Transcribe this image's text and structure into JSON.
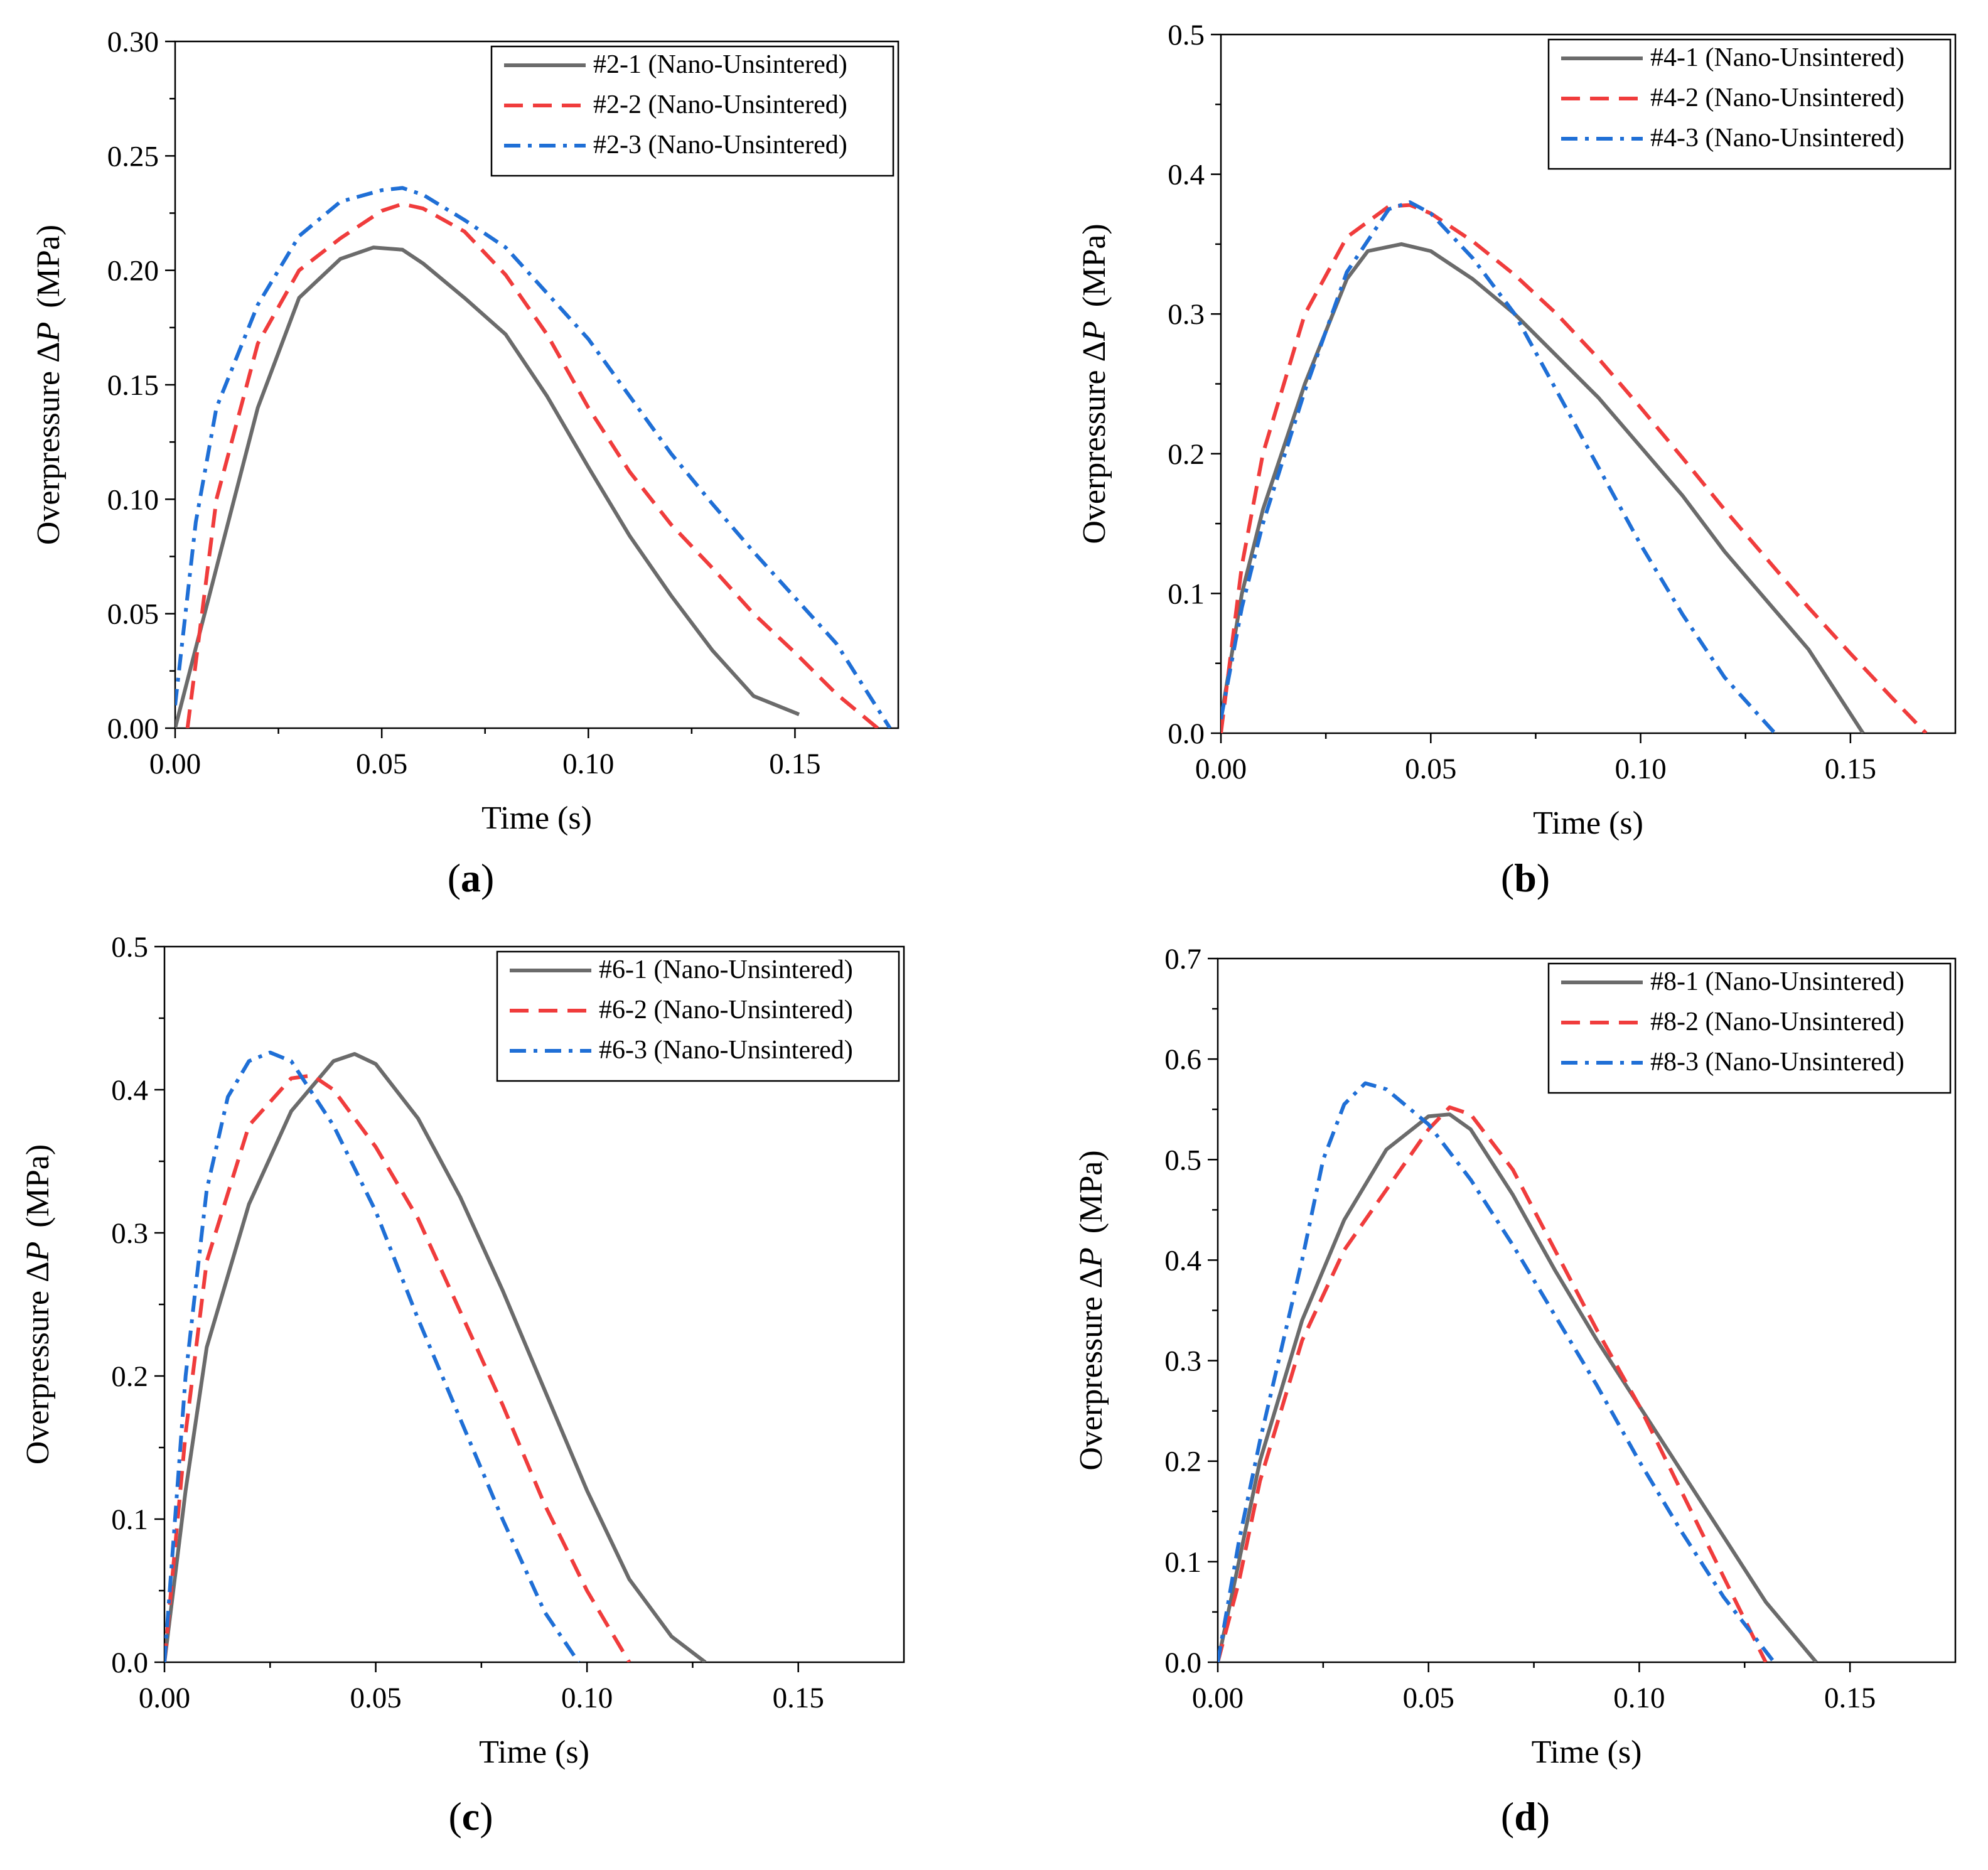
{
  "colors": {
    "series1": "#6b6b6b",
    "series2": "#f03c3c",
    "series3": "#1f6fd6"
  },
  "chart_data": [
    {
      "panel": "a",
      "type": "line",
      "xlabel": "Time (s)",
      "ylabel_prefix": "Overpressure Δ",
      "ylabel_var": "P",
      "ylabel_suffix": "(MPa)",
      "xlim": [
        0,
        0.175
      ],
      "ylim": [
        0,
        0.3
      ],
      "xticks": [
        0,
        0.05,
        0.1,
        0.15
      ],
      "xtick_labels": [
        "0.00",
        "0.05",
        "0.10",
        "0.15"
      ],
      "yticks": [
        0,
        0.05,
        0.1,
        0.15,
        0.2,
        0.25,
        0.3
      ],
      "ytick_labels": [
        "0.00",
        "0.05",
        "0.10",
        "0.15",
        "0.20",
        "0.25",
        "0.30"
      ],
      "legend_position": "top-right",
      "series": [
        {
          "name": "#2-1 (Nano-Unsintered)",
          "style": "solid",
          "color_key": "series1",
          "x": [
            0,
            0.01,
            0.02,
            0.03,
            0.04,
            0.048,
            0.055,
            0.06,
            0.07,
            0.08,
            0.09,
            0.1,
            0.11,
            0.12,
            0.13,
            0.14,
            0.151
          ],
          "y": [
            0,
            0.07,
            0.14,
            0.188,
            0.205,
            0.21,
            0.209,
            0.203,
            0.188,
            0.172,
            0.145,
            0.114,
            0.084,
            0.058,
            0.034,
            0.014,
            0.006
          ]
        },
        {
          "name": "#2-2 (Nano-Unsintered)",
          "style": "dashed",
          "color_key": "series2",
          "x": [
            0.003,
            0.01,
            0.02,
            0.03,
            0.04,
            0.05,
            0.055,
            0.06,
            0.07,
            0.08,
            0.09,
            0.1,
            0.11,
            0.12,
            0.13,
            0.14,
            0.15,
            0.16,
            0.17
          ],
          "y": [
            0,
            0.1,
            0.168,
            0.2,
            0.214,
            0.226,
            0.229,
            0.227,
            0.217,
            0.198,
            0.172,
            0.14,
            0.112,
            0.089,
            0.07,
            0.05,
            0.033,
            0.015,
            0
          ]
        },
        {
          "name": "#2-3 (Nano-Unsintered)",
          "style": "dashdot",
          "color_key": "series3",
          "x": [
            0,
            0.005,
            0.01,
            0.02,
            0.03,
            0.04,
            0.05,
            0.055,
            0.06,
            0.07,
            0.08,
            0.09,
            0.1,
            0.11,
            0.12,
            0.13,
            0.14,
            0.15,
            0.16,
            0.173
          ],
          "y": [
            0.01,
            0.09,
            0.14,
            0.185,
            0.215,
            0.23,
            0.235,
            0.236,
            0.233,
            0.222,
            0.21,
            0.19,
            0.17,
            0.145,
            0.12,
            0.098,
            0.077,
            0.057,
            0.037,
            0
          ]
        }
      ]
    },
    {
      "panel": "b",
      "type": "line",
      "xlabel": "Time (s)",
      "ylabel_prefix": "Overpressure Δ",
      "ylabel_var": "P",
      "ylabel_suffix": "(MPa)",
      "xlim": [
        0,
        0.175
      ],
      "ylim": [
        0,
        0.5
      ],
      "xticks": [
        0,
        0.05,
        0.1,
        0.15
      ],
      "xtick_labels": [
        "0.00",
        "0.05",
        "0.10",
        "0.15"
      ],
      "yticks": [
        0,
        0.1,
        0.2,
        0.3,
        0.4,
        0.5
      ],
      "ytick_labels": [
        "0.0",
        "0.1",
        "0.2",
        "0.3",
        "0.4",
        "0.5"
      ],
      "legend_position": "top-right",
      "series": [
        {
          "name": "#4-1 (Nano-Unsintered)",
          "style": "solid",
          "color_key": "series1",
          "x": [
            0,
            0.005,
            0.01,
            0.02,
            0.03,
            0.035,
            0.043,
            0.05,
            0.06,
            0.07,
            0.08,
            0.09,
            0.1,
            0.11,
            0.12,
            0.13,
            0.14,
            0.153
          ],
          "y": [
            0.01,
            0.1,
            0.16,
            0.25,
            0.325,
            0.345,
            0.35,
            0.345,
            0.325,
            0.3,
            0.27,
            0.24,
            0.205,
            0.17,
            0.13,
            0.095,
            0.06,
            0
          ]
        },
        {
          "name": "#4-2 (Nano-Unsintered)",
          "style": "dashed",
          "color_key": "series2",
          "x": [
            0,
            0.005,
            0.01,
            0.02,
            0.03,
            0.04,
            0.045,
            0.05,
            0.06,
            0.07,
            0.08,
            0.09,
            0.1,
            0.11,
            0.12,
            0.13,
            0.14,
            0.15,
            0.16,
            0.168
          ],
          "y": [
            0,
            0.12,
            0.2,
            0.3,
            0.355,
            0.377,
            0.378,
            0.372,
            0.352,
            0.328,
            0.3,
            0.268,
            0.233,
            0.197,
            0.16,
            0.125,
            0.09,
            0.057,
            0.025,
            0
          ]
        },
        {
          "name": "#4-3 (Nano-Unsintered)",
          "style": "dashdot",
          "color_key": "series3",
          "x": [
            0,
            0.005,
            0.01,
            0.02,
            0.03,
            0.04,
            0.045,
            0.05,
            0.06,
            0.07,
            0.08,
            0.09,
            0.1,
            0.11,
            0.12,
            0.132
          ],
          "y": [
            0.01,
            0.09,
            0.15,
            0.245,
            0.33,
            0.375,
            0.38,
            0.372,
            0.34,
            0.3,
            0.245,
            0.19,
            0.135,
            0.085,
            0.04,
            0
          ]
        }
      ]
    },
    {
      "panel": "c",
      "type": "line",
      "xlabel": "Time (s)",
      "ylabel_prefix": "Overpressure Δ",
      "ylabel_var": "P",
      "ylabel_suffix": "(MPa)",
      "xlim": [
        0,
        0.175
      ],
      "ylim": [
        0,
        0.5
      ],
      "xticks": [
        0,
        0.05,
        0.1,
        0.15
      ],
      "xtick_labels": [
        "0.00",
        "0.05",
        "0.10",
        "0.15"
      ],
      "yticks": [
        0,
        0.1,
        0.2,
        0.3,
        0.4,
        0.5
      ],
      "ytick_labels": [
        "0.0",
        "0.1",
        "0.2",
        "0.3",
        "0.4",
        "0.5"
      ],
      "legend_position": "top-right",
      "series": [
        {
          "name": "#6-1 (Nano-Unsintered)",
          "style": "solid",
          "color_key": "series1",
          "x": [
            0,
            0.005,
            0.01,
            0.02,
            0.03,
            0.04,
            0.045,
            0.05,
            0.06,
            0.07,
            0.08,
            0.09,
            0.1,
            0.11,
            0.12,
            0.128
          ],
          "y": [
            0,
            0.12,
            0.22,
            0.32,
            0.385,
            0.42,
            0.425,
            0.418,
            0.38,
            0.325,
            0.26,
            0.19,
            0.12,
            0.058,
            0.018,
            0
          ]
        },
        {
          "name": "#6-2 (Nano-Unsintered)",
          "style": "dashed",
          "color_key": "series2",
          "x": [
            0,
            0.005,
            0.01,
            0.02,
            0.03,
            0.035,
            0.04,
            0.05,
            0.06,
            0.07,
            0.08,
            0.09,
            0.1,
            0.11
          ],
          "y": [
            0,
            0.16,
            0.28,
            0.375,
            0.408,
            0.41,
            0.4,
            0.36,
            0.31,
            0.245,
            0.18,
            0.11,
            0.05,
            0
          ]
        },
        {
          "name": "#6-3 (Nano-Unsintered)",
          "style": "dashdot",
          "color_key": "series3",
          "x": [
            0,
            0.005,
            0.01,
            0.015,
            0.02,
            0.025,
            0.03,
            0.04,
            0.05,
            0.06,
            0.07,
            0.08,
            0.09,
            0.098
          ],
          "y": [
            0,
            0.2,
            0.33,
            0.395,
            0.42,
            0.426,
            0.42,
            0.375,
            0.315,
            0.24,
            0.17,
            0.1,
            0.035,
            0
          ]
        }
      ]
    },
    {
      "panel": "d",
      "type": "line",
      "xlabel": "Time (s)",
      "ylabel_prefix": "Overpressure Δ",
      "ylabel_var": "P",
      "ylabel_suffix": "(MPa)",
      "xlim": [
        0,
        0.175
      ],
      "ylim": [
        0,
        0.7
      ],
      "xticks": [
        0,
        0.05,
        0.1,
        0.15
      ],
      "xtick_labels": [
        "0.00",
        "0.05",
        "0.10",
        "0.15"
      ],
      "yticks": [
        0,
        0.1,
        0.2,
        0.3,
        0.4,
        0.5,
        0.6,
        0.7
      ],
      "ytick_labels": [
        "0.0",
        "0.1",
        "0.2",
        "0.3",
        "0.4",
        "0.5",
        "0.6",
        "0.7"
      ],
      "legend_position": "top-right",
      "series": [
        {
          "name": "#8-1 (Nano-Unsintered)",
          "style": "solid",
          "color_key": "series1",
          "x": [
            0,
            0.005,
            0.01,
            0.02,
            0.03,
            0.04,
            0.05,
            0.055,
            0.06,
            0.07,
            0.08,
            0.09,
            0.1,
            0.11,
            0.12,
            0.13,
            0.142
          ],
          "y": [
            0,
            0.1,
            0.2,
            0.34,
            0.44,
            0.51,
            0.543,
            0.545,
            0.53,
            0.465,
            0.39,
            0.32,
            0.255,
            0.19,
            0.125,
            0.06,
            0
          ]
        },
        {
          "name": "#8-2 (Nano-Unsintered)",
          "style": "dashed",
          "color_key": "series2",
          "x": [
            0,
            0.005,
            0.01,
            0.02,
            0.03,
            0.04,
            0.05,
            0.055,
            0.06,
            0.07,
            0.08,
            0.09,
            0.1,
            0.11,
            0.12,
            0.13
          ],
          "y": [
            0,
            0.08,
            0.18,
            0.32,
            0.41,
            0.47,
            0.53,
            0.552,
            0.545,
            0.49,
            0.41,
            0.33,
            0.255,
            0.17,
            0.085,
            0
          ]
        },
        {
          "name": "#8-3 (Nano-Unsintered)",
          "style": "dashdot",
          "color_key": "series3",
          "x": [
            0,
            0.005,
            0.01,
            0.02,
            0.025,
            0.03,
            0.035,
            0.04,
            0.05,
            0.06,
            0.07,
            0.08,
            0.09,
            0.1,
            0.11,
            0.12,
            0.132
          ],
          "y": [
            0,
            0.12,
            0.22,
            0.4,
            0.5,
            0.555,
            0.576,
            0.57,
            0.535,
            0.48,
            0.415,
            0.345,
            0.275,
            0.2,
            0.13,
            0.065,
            0
          ]
        }
      ]
    }
  ],
  "panel_labels": [
    "a",
    "b",
    "c",
    "d"
  ]
}
